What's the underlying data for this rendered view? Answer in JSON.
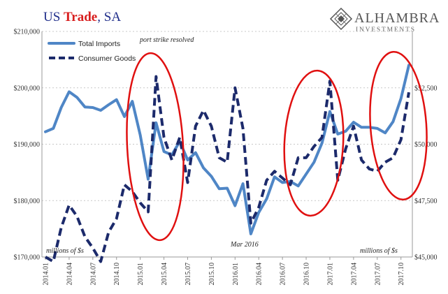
{
  "header": {
    "title_part1": "US ",
    "title_part2": "Trade",
    "title_part3": ", SA",
    "logo_name": "ALHAMBRA",
    "logo_sub": "INVESTMENTS",
    "logo_icon": "alhambra-diamond-logo"
  },
  "chart_data": {
    "type": "line",
    "title": "US Trade, SA",
    "x": [
      "2014.01",
      "2014.02",
      "2014.03",
      "2014.04",
      "2014.05",
      "2014.06",
      "2014.07",
      "2014.08",
      "2014.09",
      "2014.10",
      "2014.11",
      "2014.12",
      "2015.01",
      "2015.02",
      "2015.03",
      "2015.04",
      "2015.05",
      "2015.06",
      "2015.07",
      "2015.08",
      "2015.09",
      "2015.10",
      "2015.11",
      "2015.12",
      "2016.01",
      "2016.02",
      "2016.03",
      "2016.04",
      "2016.05",
      "2016.06",
      "2016.07",
      "2016.08",
      "2016.09",
      "2016.10",
      "2016.11",
      "2016.12",
      "2017.01",
      "2017.02",
      "2017.03",
      "2017.04",
      "2017.05",
      "2017.06",
      "2017.07",
      "2017.08",
      "2017.09",
      "2017.10",
      "2017.11"
    ],
    "x_tick_labels": [
      "2014.01",
      "2014.04",
      "2014.07",
      "2014.10",
      "2015.01",
      "2015.04",
      "2015.07",
      "2015.10",
      "2016.01",
      "2016.04",
      "2016.07",
      "2016.10",
      "2017.01",
      "2017.04",
      "2017.07",
      "2017.10"
    ],
    "series": [
      {
        "name": "Total Imports",
        "axis": "left",
        "style": "solid",
        "color": "#4f86c6",
        "values": [
          192200,
          192800,
          196500,
          199300,
          198300,
          196600,
          196500,
          196000,
          197000,
          197900,
          194900,
          197600,
          191600,
          183800,
          193800,
          188700,
          188100,
          190500,
          187200,
          188500,
          185800,
          184300,
          182100,
          182200,
          179100,
          183000,
          174100,
          177900,
          180300,
          184200,
          183200,
          183400,
          182600,
          184700,
          186800,
          190200,
          195800,
          191800,
          192300,
          193900,
          193000,
          193000,
          192800,
          192000,
          194000,
          198100,
          204000
        ]
      },
      {
        "name": "Consumer Goods",
        "axis": "right",
        "style": "dashed",
        "color": "#1c2a6b",
        "values": [
          45000,
          44800,
          46300,
          47300,
          46800,
          45900,
          45400,
          44800,
          46100,
          46700,
          48200,
          47900,
          47400,
          47000,
          53000,
          50300,
          49300,
          50300,
          48300,
          50800,
          51500,
          50800,
          49400,
          49200,
          52500,
          50700,
          46500,
          47200,
          48400,
          48800,
          48500,
          48200,
          49400,
          49400,
          49900,
          50300,
          52800,
          48400,
          49800,
          50800,
          49300,
          48900,
          48800,
          49200,
          49400,
          50200,
          52300
        ]
      }
    ],
    "left_axis": {
      "min": 170000,
      "max": 210000,
      "ticks": [
        "$170,000",
        "$180,000",
        "$190,000",
        "$200,000",
        "$210,000"
      ]
    },
    "right_axis": {
      "min": 45000,
      "max": 55000,
      "ticks": [
        "$45,000",
        "$47,500",
        "$50,000",
        "$52,500"
      ]
    },
    "legend": {
      "position": "top-left"
    },
    "grid": true,
    "annotations": {
      "port_strike": "port strike resolved",
      "mar_2016": "Mar 2016",
      "millions_left": "millions of $s",
      "millions_right": "millions of $s"
    },
    "highlight_color": "#e01010"
  }
}
